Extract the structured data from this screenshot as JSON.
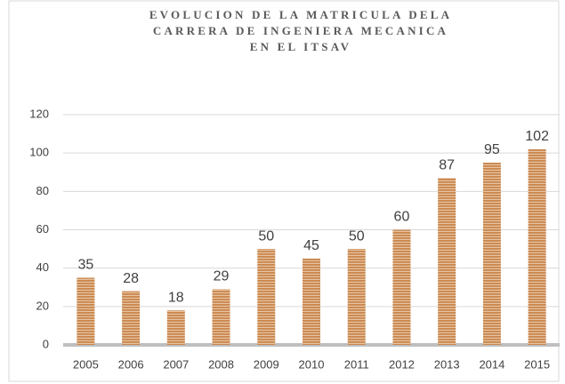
{
  "chart_data": {
    "type": "bar",
    "title": [
      "EVOLUCION DE LA MATRICULA DELA",
      "CARRERA DE INGENIERA MECANICA",
      "EN EL ITSAV"
    ],
    "categories": [
      "2005",
      "2006",
      "2007",
      "2008",
      "2009",
      "2010",
      "2011",
      "2012",
      "2013",
      "2014",
      "2015"
    ],
    "values": [
      35,
      28,
      18,
      29,
      50,
      45,
      50,
      60,
      87,
      95,
      102
    ],
    "color": "#c8864e",
    "ylim": [
      0,
      120
    ],
    "yticks": [
      0,
      20,
      40,
      60,
      80,
      100,
      120
    ],
    "grid": true
  }
}
